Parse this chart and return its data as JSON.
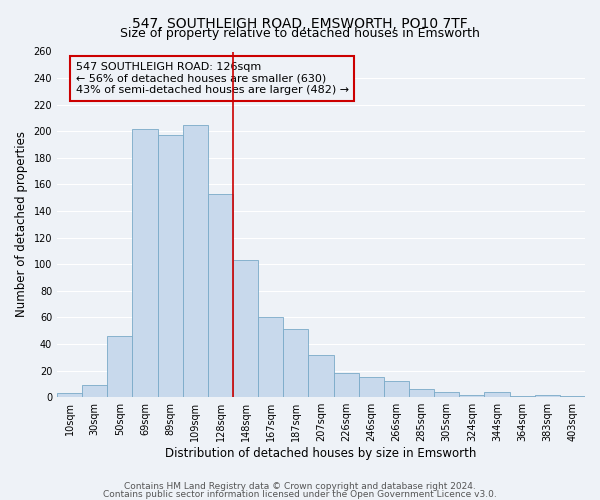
{
  "title": "547, SOUTHLEIGH ROAD, EMSWORTH, PO10 7TF",
  "subtitle": "Size of property relative to detached houses in Emsworth",
  "xlabel": "Distribution of detached houses by size in Emsworth",
  "ylabel": "Number of detached properties",
  "bar_labels": [
    "10sqm",
    "30sqm",
    "50sqm",
    "69sqm",
    "89sqm",
    "109sqm",
    "128sqm",
    "148sqm",
    "167sqm",
    "187sqm",
    "207sqm",
    "226sqm",
    "246sqm",
    "266sqm",
    "285sqm",
    "305sqm",
    "324sqm",
    "344sqm",
    "364sqm",
    "383sqm",
    "403sqm"
  ],
  "bar_values": [
    3,
    9,
    46,
    202,
    197,
    205,
    153,
    103,
    60,
    51,
    32,
    18,
    15,
    12,
    6,
    4,
    2,
    4,
    1,
    2,
    1
  ],
  "bar_color": "#c8d9ec",
  "bar_edge_color": "#7aaac8",
  "vline_x_index": 6,
  "vline_color": "#cc0000",
  "annotation_line1": "547 SOUTHLEIGH ROAD: 126sqm",
  "annotation_line2": "← 56% of detached houses are smaller (630)",
  "annotation_line3": "43% of semi-detached houses are larger (482) →",
  "annotation_box_color": "#cc0000",
  "ylim": [
    0,
    260
  ],
  "ytick_step": 20,
  "footnote1": "Contains HM Land Registry data © Crown copyright and database right 2024.",
  "footnote2": "Contains public sector information licensed under the Open Government Licence v3.0.",
  "bg_color": "#eef2f7",
  "grid_color": "#ffffff",
  "title_fontsize": 10,
  "subtitle_fontsize": 9,
  "axis_label_fontsize": 8.5,
  "tick_fontsize": 7,
  "annotation_fontsize": 8,
  "footnote_fontsize": 6.5
}
